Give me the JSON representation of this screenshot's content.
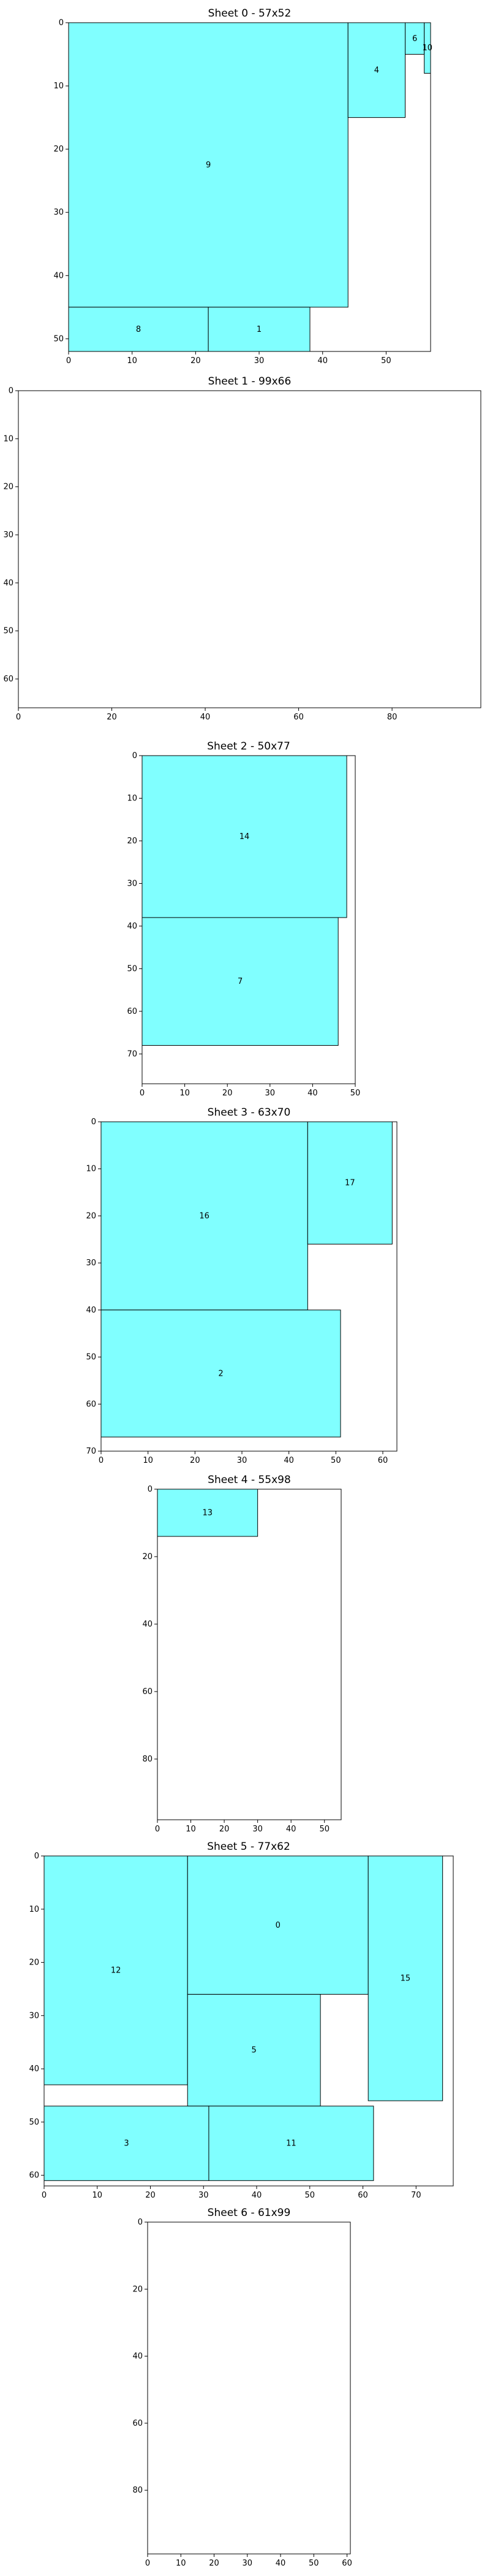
{
  "chart_data": [
    {
      "type": "bar",
      "title": "Sheet 0 - 57x52",
      "xlim": [
        0,
        57
      ],
      "ylim": [
        0,
        52
      ],
      "xticks": [
        "0",
        "10",
        "20",
        "30",
        "40",
        "50"
      ],
      "yticks": [
        "0",
        "10",
        "20",
        "30",
        "40",
        "50"
      ],
      "pieces": [
        {
          "label": "9",
          "x": 0,
          "y": 0,
          "w": 44,
          "h": 45
        },
        {
          "label": "4",
          "x": 44,
          "y": 0,
          "w": 9,
          "h": 15
        },
        {
          "label": "6",
          "x": 53,
          "y": 0,
          "w": 3,
          "h": 5
        },
        {
          "label": "10",
          "x": 56,
          "y": 0,
          "w": 1,
          "h": 8
        },
        {
          "label": "8",
          "x": 0,
          "y": 45,
          "w": 22,
          "h": 7
        },
        {
          "label": "1",
          "x": 22,
          "y": 45,
          "w": 16,
          "h": 7
        }
      ]
    },
    {
      "type": "bar",
      "title": "Sheet 1 - 99x66",
      "xlim": [
        0,
        99
      ],
      "ylim": [
        0,
        66
      ],
      "xticks": [
        "0",
        "20",
        "40",
        "60",
        "80"
      ],
      "yticks": [
        "0",
        "10",
        "20",
        "30",
        "40",
        "50",
        "60"
      ],
      "pieces": []
    },
    {
      "type": "bar",
      "title": "Sheet 2 - 50x77",
      "xlim": [
        0,
        50
      ],
      "ylim": [
        0,
        77
      ],
      "xticks": [
        "0",
        "10",
        "20",
        "30",
        "40",
        "50"
      ],
      "yticks": [
        "0",
        "10",
        "20",
        "30",
        "40",
        "50",
        "60",
        "70"
      ],
      "pieces": [
        {
          "label": "14",
          "x": 0,
          "y": 0,
          "w": 48,
          "h": 38
        },
        {
          "label": "7",
          "x": 0,
          "y": 38,
          "w": 46,
          "h": 30
        }
      ]
    },
    {
      "type": "bar",
      "title": "Sheet 3 - 63x70",
      "xlim": [
        0,
        63
      ],
      "ylim": [
        0,
        70
      ],
      "xticks": [
        "0",
        "10",
        "20",
        "30",
        "40",
        "50",
        "60"
      ],
      "yticks": [
        "0",
        "10",
        "20",
        "30",
        "40",
        "50",
        "60",
        "70"
      ],
      "pieces": [
        {
          "label": "16",
          "x": 0,
          "y": 0,
          "w": 44,
          "h": 40
        },
        {
          "label": "17",
          "x": 44,
          "y": 0,
          "w": 18,
          "h": 26
        },
        {
          "label": "2",
          "x": 0,
          "y": 40,
          "w": 51,
          "h": 27
        }
      ]
    },
    {
      "type": "bar",
      "title": "Sheet 4 - 55x98",
      "xlim": [
        0,
        55
      ],
      "ylim": [
        0,
        98
      ],
      "xticks": [
        "0",
        "10",
        "20",
        "30",
        "40",
        "50"
      ],
      "yticks": [
        "0",
        "20",
        "40",
        "60",
        "80"
      ],
      "pieces": [
        {
          "label": "13",
          "x": 0,
          "y": 0,
          "w": 30,
          "h": 14
        }
      ]
    },
    {
      "type": "bar",
      "title": "Sheet 5 - 77x62",
      "xlim": [
        0,
        77
      ],
      "ylim": [
        0,
        62
      ],
      "xticks": [
        "0",
        "10",
        "20",
        "30",
        "40",
        "50",
        "60",
        "70"
      ],
      "yticks": [
        "0",
        "10",
        "20",
        "30",
        "40",
        "50",
        "60"
      ],
      "pieces": [
        {
          "label": "12",
          "x": 0,
          "y": 0,
          "w": 27,
          "h": 43
        },
        {
          "label": "0",
          "x": 27,
          "y": 0,
          "w": 34,
          "h": 26
        },
        {
          "label": "15",
          "x": 61,
          "y": 0,
          "w": 14,
          "h": 46
        },
        {
          "label": "5",
          "x": 27,
          "y": 26,
          "w": 25,
          "h": 21
        },
        {
          "label": "3",
          "x": 0,
          "y": 47,
          "w": 31,
          "h": 14
        },
        {
          "label": "11",
          "x": 31,
          "y": 47,
          "w": 31,
          "h": 14
        }
      ]
    },
    {
      "type": "bar",
      "title": "Sheet 6 - 61x99",
      "xlim": [
        0,
        61
      ],
      "ylim": [
        0,
        99
      ],
      "xticks": [
        "0",
        "10",
        "20",
        "30",
        "40",
        "50",
        "60"
      ],
      "yticks": [
        "0",
        "20",
        "40",
        "60",
        "80"
      ],
      "pieces": []
    }
  ],
  "colors": {
    "piece_fill": "#80ffff",
    "edge": "#000000",
    "background": "#ffffff"
  }
}
